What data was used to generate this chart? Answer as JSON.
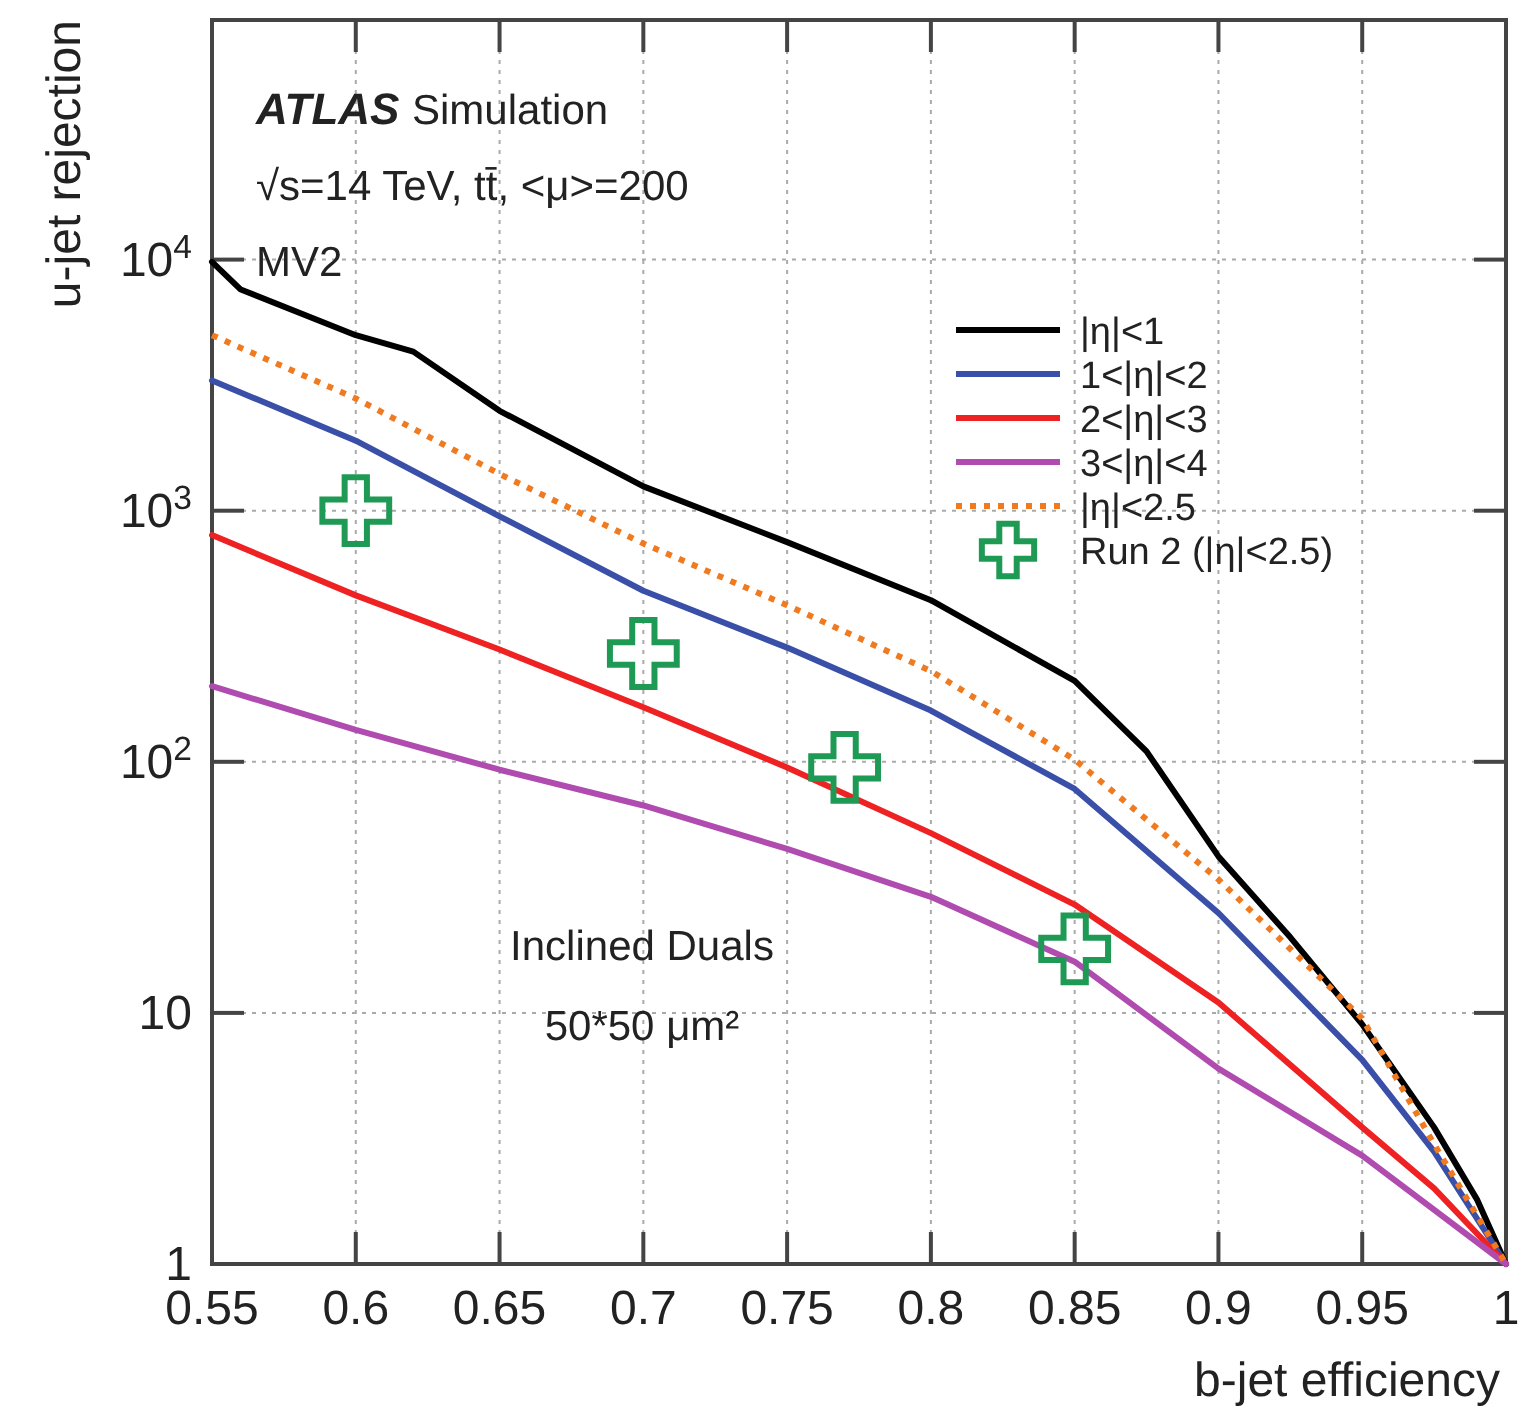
{
  "chart_data": {
    "type": "line",
    "xlabel": "b-jet efficiency",
    "ylabel": "u-jet rejection",
    "annotations": [
      "ATLAS",
      "Simulation",
      "√s=14 TeV,  tt̄, <μ>=200",
      "MV2",
      "Inclined Duals",
      "50*50 μm²"
    ],
    "log": "y",
    "grid": true,
    "legend": "top right",
    "xlim": [
      0.55,
      1
    ],
    "xticks": [
      0.55,
      0.6,
      0.65,
      0.7,
      0.75,
      0.8,
      0.85,
      0.9,
      0.95,
      1
    ],
    "ylim": [
      1,
      90000
    ],
    "yticks": [
      1,
      10,
      {
        "value": 100,
        "label": "10$^{2}$"
      },
      {
        "value": 1000,
        "label": "10$^{3}$"
      },
      {
        "value": 10000,
        "label": "10$^{4}$"
      }
    ],
    "series": [
      {
        "name": "|η|<1",
        "color": "#000000",
        "line_style": "solid",
        "x": [
          0.55,
          0.56,
          0.6,
          0.62,
          0.65,
          0.7,
          0.75,
          0.8,
          0.85,
          0.875,
          0.9,
          0.925,
          0.95,
          0.975,
          0.99,
          1
        ],
        "values": [
          9800,
          7600,
          5000,
          4300,
          2500,
          1250,
          750,
          440,
          210,
          110,
          42,
          20,
          9,
          3.5,
          1.8,
          1
        ]
      },
      {
        "name": "1<|η|<2",
        "color": "#3a4fa8",
        "line_style": "solid",
        "x": [
          0.55,
          0.6,
          0.65,
          0.7,
          0.75,
          0.8,
          0.85,
          0.9,
          0.95,
          0.975,
          1
        ],
        "values": [
          3300,
          1900,
          950,
          480,
          285,
          160,
          78,
          25,
          6.5,
          2.8,
          1
        ]
      },
      {
        "name": "2<|η|<3",
        "color": "#ee2222",
        "line_style": "solid",
        "x": [
          0.55,
          0.6,
          0.65,
          0.7,
          0.75,
          0.8,
          0.85,
          0.9,
          0.95,
          0.975,
          1
        ],
        "values": [
          800,
          460,
          280,
          165,
          95,
          52,
          27,
          11,
          3.5,
          2,
          1
        ]
      },
      {
        "name": "3<|η|<4",
        "color": "#b04cb0",
        "line_style": "solid",
        "x": [
          0.55,
          0.6,
          0.65,
          0.7,
          0.75,
          0.8,
          0.85,
          0.9,
          0.95,
          1
        ],
        "values": [
          200,
          134,
          93,
          67,
          45,
          29,
          16,
          6,
          2.7,
          1
        ]
      },
      {
        "name": "|η|<2.5",
        "color": "#f07a20",
        "line_style": "dotted",
        "x": [
          0.55,
          0.6,
          0.65,
          0.7,
          0.75,
          0.8,
          0.85,
          0.9,
          0.95,
          0.975,
          1
        ],
        "values": [
          5000,
          2800,
          1400,
          740,
          420,
          230,
          102,
          34,
          9.5,
          3,
          1
        ]
      },
      {
        "name": "Run 2 (|η|<2.5)",
        "type": "scatter",
        "marker": "cross",
        "color": "#1f9a55",
        "x": [
          0.6,
          0.7,
          0.77,
          0.85
        ],
        "values": [
          1000,
          270,
          95,
          18
        ]
      }
    ]
  }
}
